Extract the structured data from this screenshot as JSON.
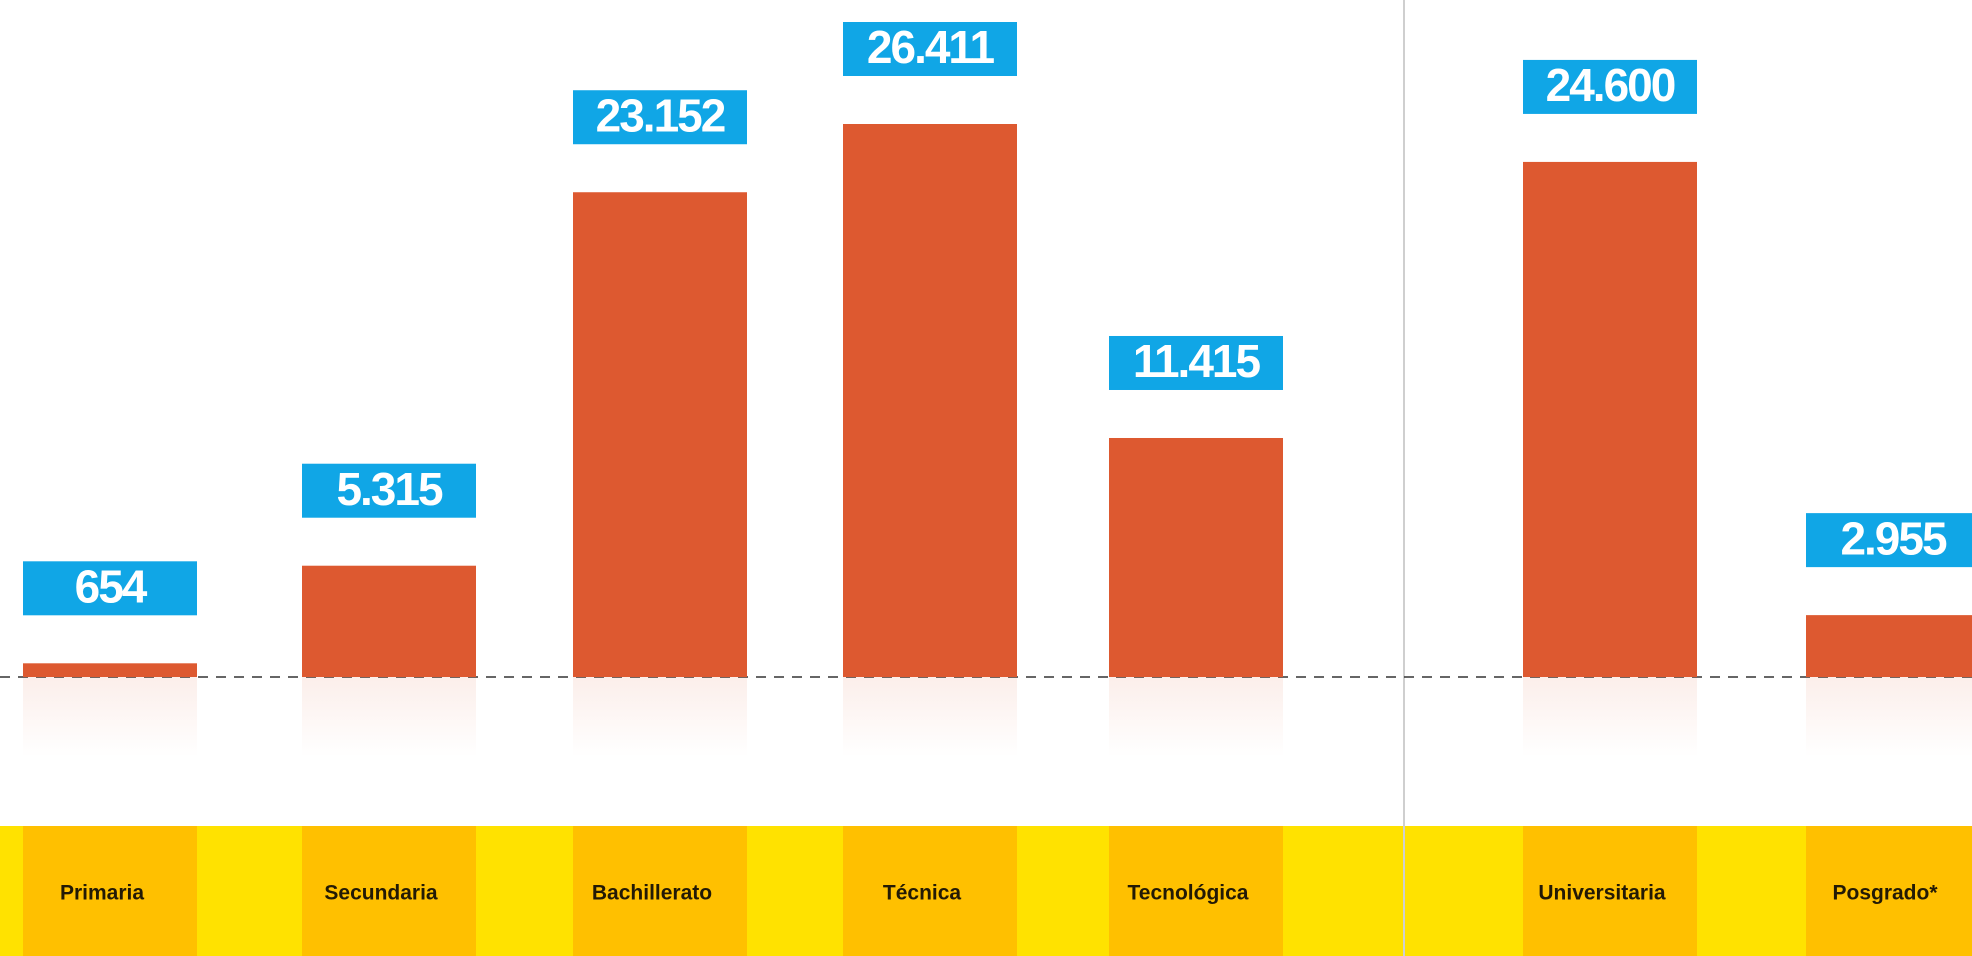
{
  "chart_data": {
    "type": "bar",
    "categories": [
      "Primaria",
      "Secundaria",
      "Bachillerato",
      "Técnica",
      "Tecnológica",
      "Universitaria",
      "Posgrado*"
    ],
    "values": [
      654,
      5315,
      23152,
      26411,
      11415,
      24600,
      2955
    ],
    "value_labels": [
      "654",
      "5.315",
      "23.152",
      "26.411",
      "11.415",
      "24.600",
      "2.955"
    ],
    "color": "#dd5930",
    "label_color": "#10a6e6"
  }
}
